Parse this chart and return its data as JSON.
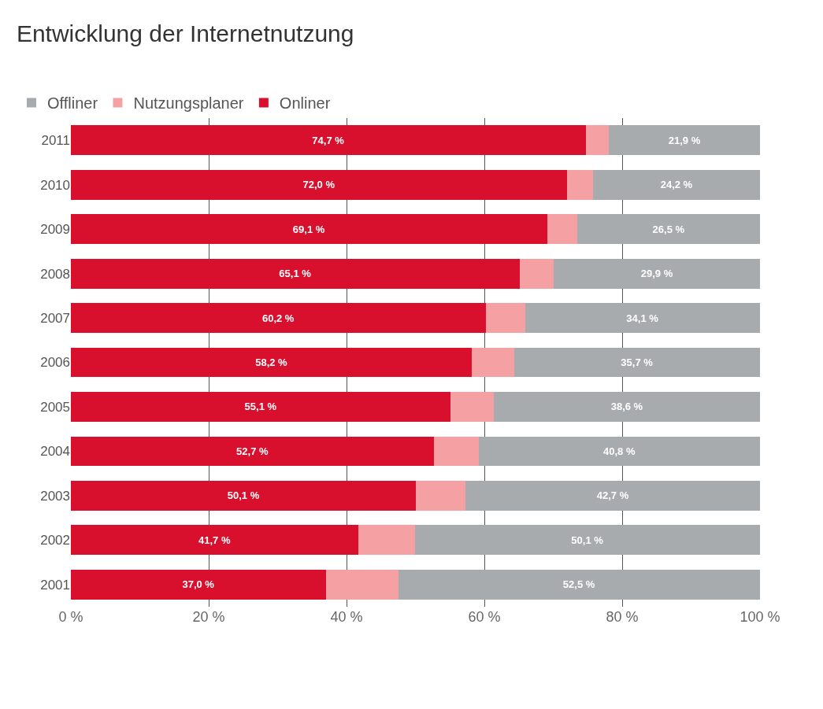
{
  "chart_data": {
    "type": "bar",
    "orientation": "horizontal",
    "stacked": true,
    "title": "Entwicklung der Internetnutzung",
    "categories": [
      "2011",
      "2010",
      "2009",
      "2008",
      "2007",
      "2006",
      "2005",
      "2004",
      "2003",
      "2002",
      "2001"
    ],
    "series": [
      {
        "name": "Onliner",
        "color": "#d9102d",
        "values": [
          74.7,
          72.0,
          69.1,
          65.1,
          60.2,
          58.2,
          55.1,
          52.7,
          50.1,
          41.7,
          37.0
        ],
        "value_labels": [
          "74,7 %",
          "72,0 %",
          "69,1 %",
          "65,1 %",
          "60,2 %",
          "58,2 %",
          "55,1 %",
          "52,7 %",
          "50,1 %",
          "41,7 %",
          "37,0 %"
        ]
      },
      {
        "name": "Nutzungsplaner",
        "color": "#f5a0a3",
        "values": [
          3.4,
          3.8,
          4.4,
          5.0,
          5.7,
          6.1,
          6.3,
          6.5,
          7.2,
          8.2,
          10.5
        ]
      },
      {
        "name": "Offliner",
        "color": "#a8abae",
        "values": [
          21.9,
          24.2,
          26.5,
          29.9,
          34.1,
          35.7,
          38.6,
          40.8,
          42.7,
          50.1,
          52.5
        ],
        "value_labels": [
          "21,9 %",
          "24,2 %",
          "26,5 %",
          "29,9 %",
          "34,1 %",
          "35,7 %",
          "38,6 %",
          "40,8 %",
          "42,7 %",
          "50,1 %",
          "52,5 %"
        ]
      }
    ],
    "xlim": [
      0,
      100
    ],
    "xticks": [
      {
        "value": 0,
        "label": "0 %"
      },
      {
        "value": 20,
        "label": "20 %"
      },
      {
        "value": 40,
        "label": "40 %"
      },
      {
        "value": 60,
        "label": "60 %"
      },
      {
        "value": 80,
        "label": "80 %"
      },
      {
        "value": 100,
        "label": "100 %"
      }
    ],
    "grid": "x",
    "legend": "top left"
  }
}
